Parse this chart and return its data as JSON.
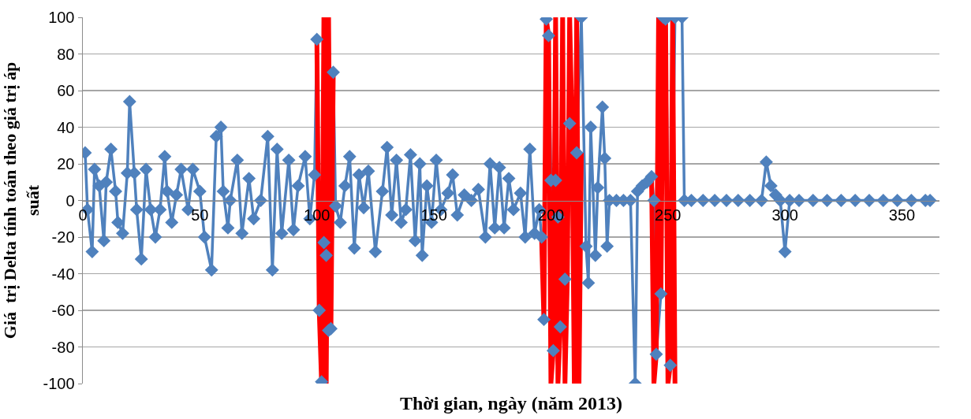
{
  "chart_data": {
    "type": "line",
    "xlabel": "Thời gian, ngày (năm 2013)",
    "ylabel": "Giá  trị Delta tính toán theo giá trị áp suất",
    "xlim": [
      0,
      366
    ],
    "xticks": [
      0,
      50,
      100,
      150,
      200,
      250,
      300,
      350
    ],
    "ylim": [
      -100,
      100
    ],
    "yticks": [
      -100,
      -80,
      -60,
      -40,
      -20,
      0,
      20,
      40,
      60,
      80,
      100
    ],
    "grid": "y",
    "marker": "diamond",
    "line_style": "solid",
    "series": [
      {
        "color": "#4f81bd",
        "x": [
          1,
          2,
          4,
          5,
          7,
          9,
          10,
          12,
          14,
          15,
          17,
          19,
          20,
          22,
          23,
          25,
          27,
          29,
          31,
          33,
          35,
          36,
          38,
          40,
          42,
          45,
          47,
          50,
          52,
          55,
          57,
          59,
          60,
          62,
          63,
          66,
          68,
          71,
          73,
          76,
          79,
          81,
          83,
          85,
          88,
          90,
          92,
          95,
          97,
          99,
          100,
          101,
          102,
          103,
          104,
          105,
          106,
          107,
          108,
          110,
          112,
          114,
          116,
          118,
          120,
          122,
          125,
          128,
          130,
          132,
          134,
          136,
          138,
          140,
          142,
          144,
          145,
          147,
          149,
          151,
          153,
          156,
          158,
          160,
          163,
          166,
          169,
          172,
          174,
          176,
          178,
          180,
          182,
          184,
          187,
          189,
          191,
          193,
          195,
          196,
          197,
          198,
          199,
          200,
          201,
          202,
          203,
          204,
          206,
          208,
          211,
          213,
          215,
          216,
          217,
          219,
          220,
          222,
          223,
          224,
          225,
          228,
          231,
          234,
          236,
          237,
          239,
          241,
          243,
          244,
          245,
          247,
          248,
          249,
          251,
          253,
          256,
          257,
          260,
          265,
          270,
          275,
          280,
          285,
          290,
          292,
          294,
          296,
          298,
          300,
          302,
          306,
          312,
          318,
          324,
          330,
          336,
          342,
          348,
          354,
          360,
          362
        ],
        "values": [
          26,
          -5,
          -28,
          17,
          8,
          -22,
          10,
          28,
          5,
          -12,
          -18,
          15,
          54,
          15,
          -5,
          -32,
          17,
          -5,
          -20,
          -5,
          24,
          5,
          -12,
          3,
          17,
          -5,
          17,
          5,
          -20,
          -38,
          35,
          40,
          5,
          -15,
          0,
          22,
          -18,
          12,
          -10,
          0,
          35,
          -38,
          28,
          -18,
          22,
          -16,
          8,
          24,
          -10,
          14,
          88,
          -60,
          -99,
          -23,
          -30,
          -71,
          -70,
          70,
          -3,
          -12,
          8,
          24,
          -26,
          14,
          -4,
          16,
          -28,
          5,
          29,
          -8,
          22,
          -12,
          -5,
          25,
          -22,
          20,
          -30,
          8,
          -12,
          22,
          -5,
          4,
          14,
          -8,
          3,
          0,
          6,
          -20,
          20,
          -15,
          18,
          -15,
          12,
          -5,
          4,
          -20,
          28,
          -18,
          -5,
          -20,
          -65,
          99,
          90,
          11,
          -82,
          11,
          -9,
          -69,
          -43,
          42,
          26,
          100,
          -25,
          -45,
          40,
          -30,
          7,
          51,
          23,
          -25,
          0,
          0,
          0,
          0,
          -100,
          5,
          8,
          10,
          13,
          0,
          -84,
          -51,
          100,
          99,
          -90,
          100,
          100,
          0,
          0,
          0,
          0,
          0,
          0,
          0,
          0,
          21,
          8,
          3,
          0,
          -28,
          0,
          0,
          0,
          0,
          0,
          0,
          0,
          0,
          0,
          0,
          0,
          0
        ]
      },
      {
        "color": "#ff0000",
        "marker": "none",
        "x": [
          100,
          101,
          102,
          103,
          104,
          105,
          106,
          107
        ],
        "values": [
          88,
          -60,
          -99,
          100,
          -100,
          100,
          -71,
          70
        ]
      },
      {
        "color": "#ff0000",
        "marker": "none",
        "x": [
          196,
          197,
          198,
          199,
          200,
          201,
          202,
          203,
          204,
          205,
          206,
          207,
          208,
          209,
          210,
          211,
          212,
          213
        ],
        "values": [
          -20,
          -65,
          99,
          90,
          -100,
          -82,
          100,
          -100,
          -69,
          100,
          -100,
          -43,
          100,
          42,
          -100,
          100,
          -100,
          26
        ]
      },
      {
        "color": "#ff0000",
        "marker": "none",
        "x": [
          243,
          244,
          245,
          246,
          247,
          248,
          249,
          250,
          251,
          252,
          253
        ],
        "values": [
          13,
          -100,
          -84,
          100,
          -51,
          100,
          99,
          -100,
          -90,
          100,
          -100
        ]
      }
    ]
  }
}
